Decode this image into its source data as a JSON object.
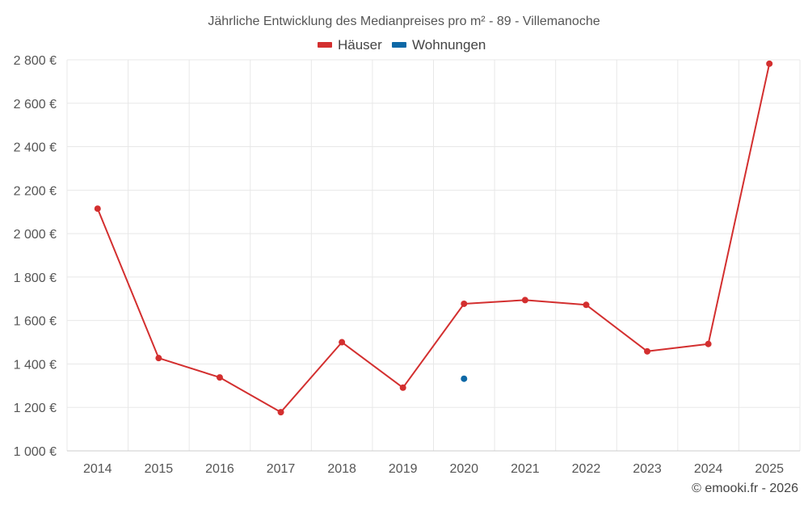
{
  "chart_data": {
    "type": "line",
    "title": "Jährliche Entwicklung des Medianpreises pro m² - 89 - Villemanoche",
    "categories": [
      "2014",
      "2015",
      "2016",
      "2017",
      "2018",
      "2019",
      "2020",
      "2021",
      "2022",
      "2023",
      "2024",
      "2025"
    ],
    "series": [
      {
        "name": "Häuser",
        "color": "#d32f2f",
        "values": [
          2115,
          1427,
          1338,
          1178,
          1500,
          1291,
          1677,
          1694,
          1672,
          1458,
          1492,
          2782
        ]
      },
      {
        "name": "Wohnungen",
        "color": "#0d68a6",
        "values": [
          null,
          null,
          null,
          null,
          null,
          null,
          1332,
          null,
          null,
          null,
          null,
          null
        ]
      }
    ],
    "ylim": [
      1000,
      2800
    ],
    "yticks": [
      1000,
      1200,
      1400,
      1600,
      1800,
      2000,
      2200,
      2400,
      2600,
      2800
    ],
    "ytick_labels": [
      "1 000 €",
      "1 200 €",
      "1 400 €",
      "1 600 €",
      "1 800 €",
      "2 000 €",
      "2 200 €",
      "2 400 €",
      "2 600 €",
      "2 800 €"
    ],
    "xlabel": "",
    "ylabel": "",
    "grid": true,
    "legend_position": "top-center"
  },
  "credit": "© emooki.fr - 2026"
}
